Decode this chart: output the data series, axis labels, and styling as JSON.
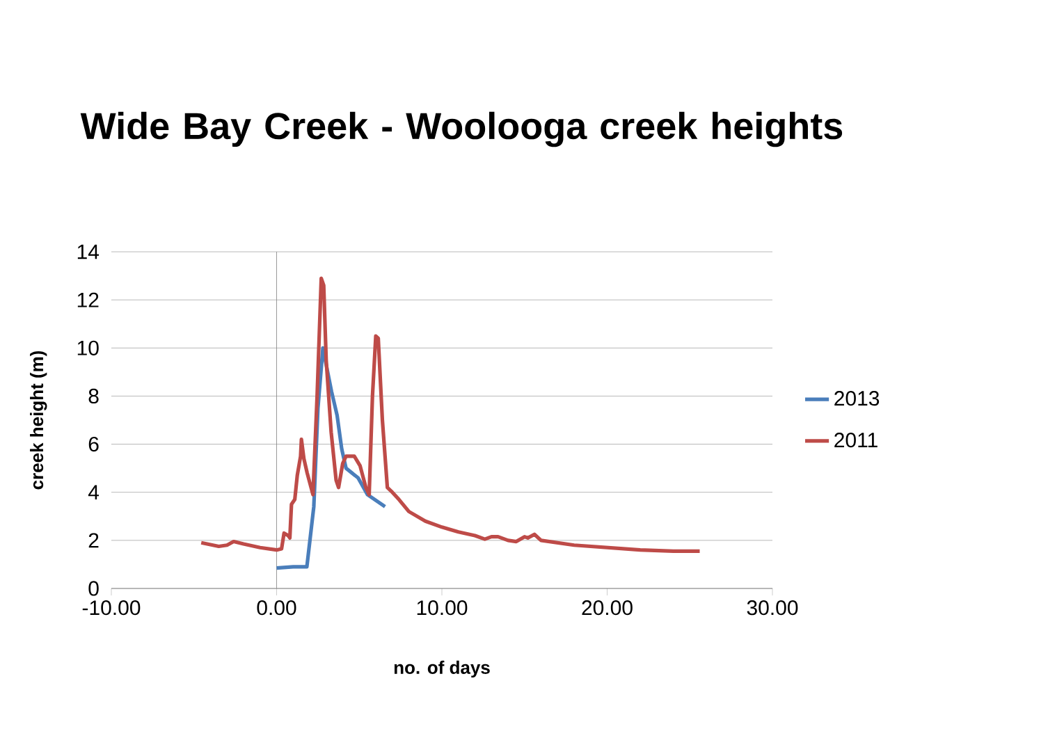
{
  "chart_data": {
    "type": "line",
    "title": "Wide Bay Creek - Woolooga creek heights",
    "xlabel": "no. of days",
    "ylabel": "creek height (m)",
    "xlim": [
      -10,
      30
    ],
    "ylim": [
      0,
      14
    ],
    "xticks": [
      {
        "value": -10,
        "label": "-10.00"
      },
      {
        "value": 0,
        "label": "0.00"
      },
      {
        "value": 10,
        "label": "10.00"
      },
      {
        "value": 20,
        "label": "20.00"
      },
      {
        "value": 30,
        "label": "30.00"
      }
    ],
    "yticks": [
      0,
      2,
      4,
      6,
      8,
      10,
      12,
      14
    ],
    "grid": "y",
    "legend": "right",
    "series": [
      {
        "name": "2013",
        "color": "#4a7ebb",
        "x": [
          0,
          1.0,
          1.83,
          2.25,
          2.5,
          2.8,
          3.32,
          3.66,
          3.94,
          4.2,
          4.93,
          5.5,
          6.56
        ],
        "values": [
          0.85,
          0.9,
          0.9,
          3.4,
          7.5,
          10.0,
          8.2,
          7.2,
          5.8,
          5.0,
          4.6,
          3.9,
          3.4
        ]
      },
      {
        "name": "2011",
        "color": "#be4b48",
        "x": [
          -4.56,
          -3.5,
          -3.0,
          -2.6,
          -2.0,
          -1.0,
          0,
          0.3,
          0.45,
          0.7,
          0.8,
          0.9,
          1.1,
          1.25,
          1.45,
          1.5,
          1.65,
          1.85,
          2.2,
          2.45,
          2.7,
          2.85,
          3.0,
          3.3,
          3.6,
          3.75,
          4.0,
          4.2,
          4.7,
          5.05,
          5.4,
          5.6,
          5.8,
          6.0,
          6.15,
          6.4,
          6.7,
          7.0,
          7.4,
          8.0,
          9.0,
          10.0,
          11.0,
          12.0,
          12.6,
          13.0,
          13.4,
          14.0,
          14.5,
          15.0,
          15.2,
          15.6,
          16.0,
          17.0,
          18.0,
          20.0,
          22.0,
          24.0,
          25.6
        ],
        "values": [
          1.9,
          1.75,
          1.8,
          1.95,
          1.85,
          1.7,
          1.6,
          1.65,
          2.3,
          2.2,
          2.1,
          3.5,
          3.7,
          4.7,
          5.5,
          6.2,
          5.4,
          4.8,
          3.9,
          8.0,
          12.9,
          12.6,
          9.5,
          6.5,
          4.5,
          4.2,
          5.2,
          5.5,
          5.5,
          5.1,
          4.2,
          3.9,
          8.0,
          10.5,
          10.4,
          7.0,
          4.2,
          4.0,
          3.7,
          3.2,
          2.8,
          2.55,
          2.35,
          2.2,
          2.05,
          2.15,
          2.15,
          2.0,
          1.95,
          2.15,
          2.1,
          2.25,
          2.0,
          1.9,
          1.8,
          1.7,
          1.6,
          1.55,
          1.55
        ]
      }
    ]
  }
}
